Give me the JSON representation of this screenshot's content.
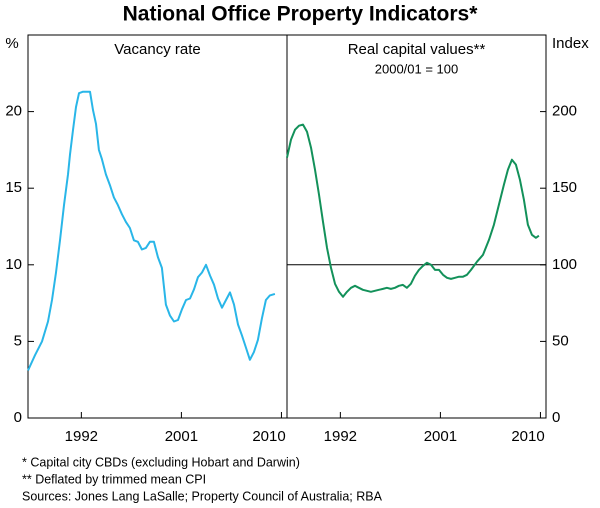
{
  "title": "National Office Property Indicators*",
  "notes": [
    "*    Capital city CBDs (excluding Hobart and Darwin)",
    "**  Deflated by trimmed mean CPI",
    "Sources: Jones Lang LaSalle; Property Council of Australia; RBA"
  ],
  "chart_data": [
    {
      "type": "line",
      "title": "Vacancy rate",
      "ylabel": "%",
      "side": "left",
      "color": "#29b6e8",
      "xlim": [
        1987.2,
        2010.5
      ],
      "xticks": [
        1992,
        2001,
        2010
      ],
      "ylim": [
        0,
        25
      ],
      "yticks": [
        0,
        5,
        10,
        15,
        20
      ],
      "x": [
        1987.2,
        1987.83,
        1988.46,
        1989.0,
        1989.36,
        1989.72,
        1990.08,
        1990.44,
        1990.8,
        1990.98,
        1991.25,
        1991.52,
        1991.79,
        1992.15,
        1992.51,
        1992.78,
        1993.05,
        1993.32,
        1993.58,
        1993.85,
        1994.21,
        1994.57,
        1994.93,
        1995.29,
        1995.65,
        1996.01,
        1996.37,
        1996.73,
        1997.09,
        1997.45,
        1997.81,
        1998.17,
        1998.53,
        1998.89,
        1999.25,
        1999.61,
        1999.97,
        2000.33,
        2000.69,
        2001.05,
        2001.41,
        2001.77,
        2002.13,
        2002.49,
        2002.85,
        2003.21,
        2003.57,
        2003.93,
        2004.29,
        2004.65,
        2005.01,
        2005.37,
        2005.73,
        2006.09,
        2006.44,
        2006.8,
        2007.16,
        2007.52,
        2007.88,
        2008.24,
        2008.6,
        2008.96,
        2009.41
      ],
      "values": [
        3.1,
        4.1,
        5.0,
        6.3,
        7.7,
        9.5,
        11.6,
        13.9,
        15.9,
        17.2,
        18.8,
        20.3,
        21.2,
        21.3,
        21.3,
        21.3,
        20.1,
        19.2,
        17.5,
        16.9,
        15.9,
        15.2,
        14.4,
        13.9,
        13.3,
        12.8,
        12.4,
        11.6,
        11.5,
        11.0,
        11.1,
        11.5,
        11.5,
        10.5,
        9.8,
        7.4,
        6.7,
        6.3,
        6.4,
        7.1,
        7.7,
        7.8,
        8.4,
        9.2,
        9.5,
        10.0,
        9.3,
        8.7,
        7.8,
        7.2,
        7.7,
        8.2,
        7.4,
        6.1,
        5.4,
        4.6,
        3.8,
        4.3,
        5.1,
        6.5,
        7.7,
        8.0,
        8.1
      ]
    },
    {
      "type": "line",
      "title": "Real capital values**",
      "subtitle": "2000/01 = 100",
      "ylabel": "Index",
      "side": "right",
      "color": "#13915a",
      "hline": 100,
      "xlim": [
        1987.2,
        2010.5
      ],
      "xticks": [
        1992,
        2001,
        2010
      ],
      "ylim": [
        0,
        250
      ],
      "yticks": [
        0,
        50,
        100,
        150,
        200
      ],
      "x": [
        1987.2,
        1987.56,
        1987.92,
        1988.28,
        1988.64,
        1989.0,
        1989.36,
        1989.72,
        1990.08,
        1990.44,
        1990.8,
        1991.16,
        1991.52,
        1991.88,
        1992.24,
        1992.6,
        1992.96,
        1993.32,
        1993.67,
        1994.03,
        1994.39,
        1994.75,
        1995.11,
        1995.47,
        1995.83,
        1996.19,
        1996.55,
        1996.91,
        1997.27,
        1997.63,
        1997.99,
        1998.35,
        1998.71,
        1999.07,
        1999.43,
        1999.79,
        2000.15,
        2000.51,
        2000.87,
        2001.23,
        2001.59,
        2001.95,
        2002.31,
        2002.67,
        2003.03,
        2003.39,
        2003.75,
        2004.29,
        2004.83,
        2005.37,
        2005.81,
        2006.26,
        2006.71,
        2007.07,
        2007.43,
        2007.79,
        2008.15,
        2008.51,
        2008.87,
        2009.23,
        2009.59,
        2009.86
      ],
      "values": [
        169.9,
        181.7,
        188.2,
        190.8,
        191.5,
        186.9,
        176.5,
        162.1,
        145.8,
        128.1,
        111.1,
        98.0,
        87.6,
        82.4,
        79.1,
        82.4,
        85.0,
        86.3,
        85.0,
        83.7,
        83.0,
        82.4,
        83.0,
        83.7,
        84.3,
        85.0,
        84.3,
        85.0,
        86.3,
        86.9,
        85.0,
        87.6,
        92.8,
        96.7,
        99.3,
        101.3,
        100.0,
        96.7,
        96.7,
        93.5,
        91.5,
        90.8,
        91.5,
        92.2,
        92.2,
        93.5,
        96.7,
        102.0,
        106.5,
        116.3,
        126.1,
        139.2,
        152.3,
        162.1,
        168.6,
        165.4,
        155.6,
        142.5,
        126.1,
        119.6,
        117.6,
        119.0
      ]
    }
  ]
}
